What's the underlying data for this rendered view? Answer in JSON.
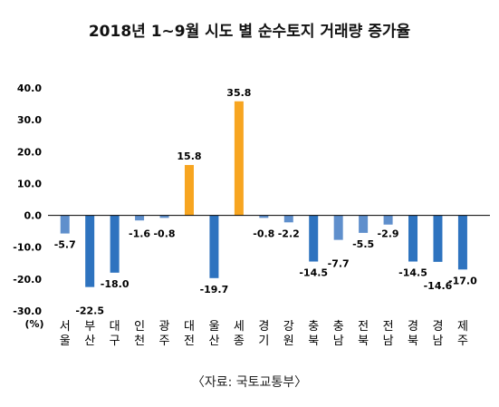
{
  "chart_data": {
    "type": "bar",
    "title": "2018년 1~9월 시도 별 순수토지 거래량 증가율",
    "ylabel": "(%)",
    "ylim": [
      -30,
      40
    ],
    "yticks": [
      "40.0",
      "30.0",
      "20.0",
      "10.0",
      "0.0",
      "-10.0",
      "-20.0",
      "-30.0"
    ],
    "grid": false,
    "categories": [
      "서울",
      "부산",
      "대구",
      "인천",
      "광주",
      "대전",
      "울산",
      "세종",
      "경기",
      "강원",
      "충북",
      "충남",
      "전북",
      "전남",
      "경북",
      "경남",
      "제주"
    ],
    "values": [
      -5.7,
      -22.5,
      -18.0,
      -1.6,
      -0.8,
      15.8,
      -19.7,
      35.8,
      -0.8,
      -2.2,
      -14.5,
      -7.7,
      -5.5,
      -2.9,
      -14.5,
      -14.6,
      -17.0
    ],
    "value_labels": [
      "-5.7",
      "-22.5",
      "-18.0",
      "-1.6",
      "-0.8",
      "15.8",
      "-19.7",
      "35.8",
      "-0.8",
      "-2.2",
      "-14.5",
      "-7.7",
      "-5.5",
      "-2.9",
      "-14.5",
      "-14.6",
      "-17.0"
    ],
    "highlight_categories": [
      "대전",
      "세종"
    ],
    "colors": {
      "dark_blue": "#2e73bf",
      "light_blue": "#5f8fcc",
      "highlight": "#f7a520",
      "axis": "#000000",
      "text": "#000000"
    },
    "bar_shades": [
      "light",
      "dark",
      "dark",
      "light",
      "light",
      "highlight",
      "dark",
      "highlight",
      "light",
      "light",
      "dark",
      "light",
      "light",
      "light",
      "dark",
      "dark",
      "dark"
    ]
  },
  "source": "〈자료:  국토교통부〉"
}
